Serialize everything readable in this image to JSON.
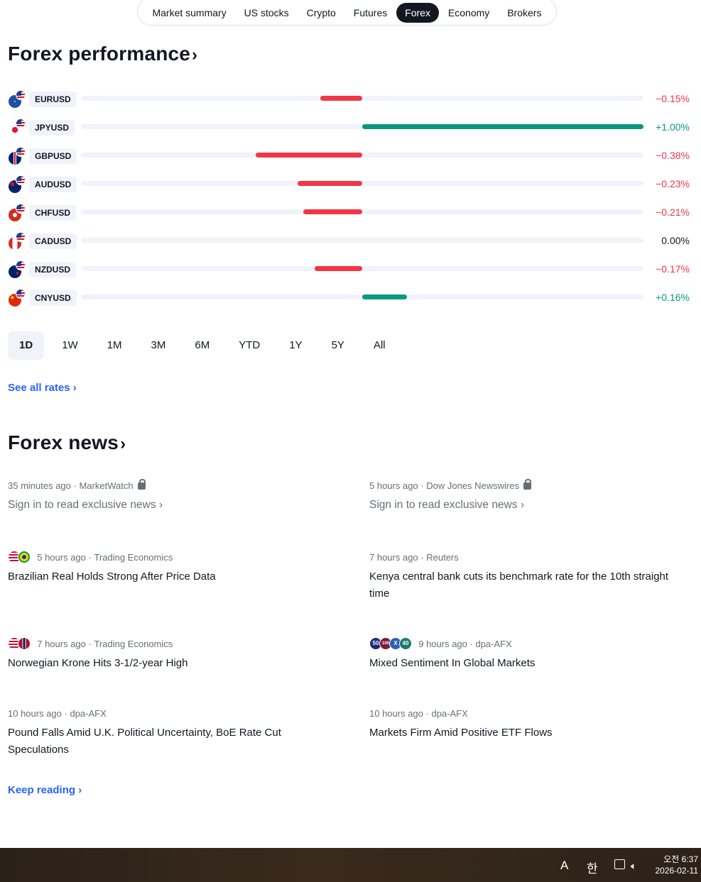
{
  "tabs": [
    "Market summary",
    "US stocks",
    "Crypto",
    "Futures",
    "Forex",
    "Economy",
    "Brokers"
  ],
  "active_tab": "Forex",
  "performance": {
    "title": "Forex performance",
    "rates": [
      {
        "symbol": "EURUSD",
        "change": "−0.15%",
        "value": -0.15,
        "flag": "eu-flag"
      },
      {
        "symbol": "JPYUSD",
        "change": "+1.00%",
        "value": 1.0,
        "flag": "jp-flag"
      },
      {
        "symbol": "GBPUSD",
        "change": "−0.38%",
        "value": -0.38,
        "flag": "gb-flag"
      },
      {
        "symbol": "AUDUSD",
        "change": "−0.23%",
        "value": -0.23,
        "flag": "au-flag"
      },
      {
        "symbol": "CHFUSD",
        "change": "−0.21%",
        "value": -0.21,
        "flag": "ch-flag"
      },
      {
        "symbol": "CADUSD",
        "change": "0.00%",
        "value": 0.0,
        "flag": "ca-flag"
      },
      {
        "symbol": "NZDUSD",
        "change": "−0.17%",
        "value": -0.17,
        "flag": "nz-flag"
      },
      {
        "symbol": "CNYUSD",
        "change": "+0.16%",
        "value": 0.16,
        "flag": "cn-flag"
      }
    ],
    "periods": [
      "1D",
      "1W",
      "1M",
      "3M",
      "6M",
      "YTD",
      "1Y",
      "5Y",
      "All"
    ],
    "active_period": "1D",
    "see_all": "See all rates"
  },
  "news": {
    "title": "Forex news",
    "items": [
      {
        "time": "35 minutes ago",
        "source": "MarketWatch",
        "headline": "Sign in to read exclusive news",
        "locked": true
      },
      {
        "time": "5 hours ago",
        "source": "Dow Jones Newswires",
        "headline": "Sign in to read exclusive news",
        "locked": true
      },
      {
        "time": "5 hours ago",
        "source": "Trading Economics",
        "headline": "Brazilian Real Holds Strong After Price Data"
      },
      {
        "time": "7 hours ago",
        "source": "Reuters",
        "headline": "Kenya central bank cuts its benchmark rate for the 10th straight time"
      },
      {
        "time": "7 hours ago",
        "source": "Trading Economics",
        "headline": "Norwegian Krone Hits 3-1/2-year High"
      },
      {
        "time": "9 hours ago",
        "source": "dpa-AFX",
        "headline": "Mixed Sentiment In Global Markets",
        "chips": [
          "50",
          "100",
          "X",
          "40"
        ]
      },
      {
        "time": "10 hours ago",
        "source": "dpa-AFX",
        "headline": "Pound Falls Amid U.K. Political Uncertainty, BoE Rate Cut Speculations"
      },
      {
        "time": "10 hours ago",
        "source": "dpa-AFX",
        "headline": "Markets Firm Amid Positive ETF Flows"
      }
    ],
    "keep_reading": "Keep reading"
  },
  "taskbar": {
    "ime_latin": "A",
    "ime_korean": "한",
    "time": "오전 6:37",
    "date": "2026-02-11"
  },
  "colors": {
    "negative": "#f23645",
    "positive": "#089981",
    "link": "#2962ff"
  }
}
